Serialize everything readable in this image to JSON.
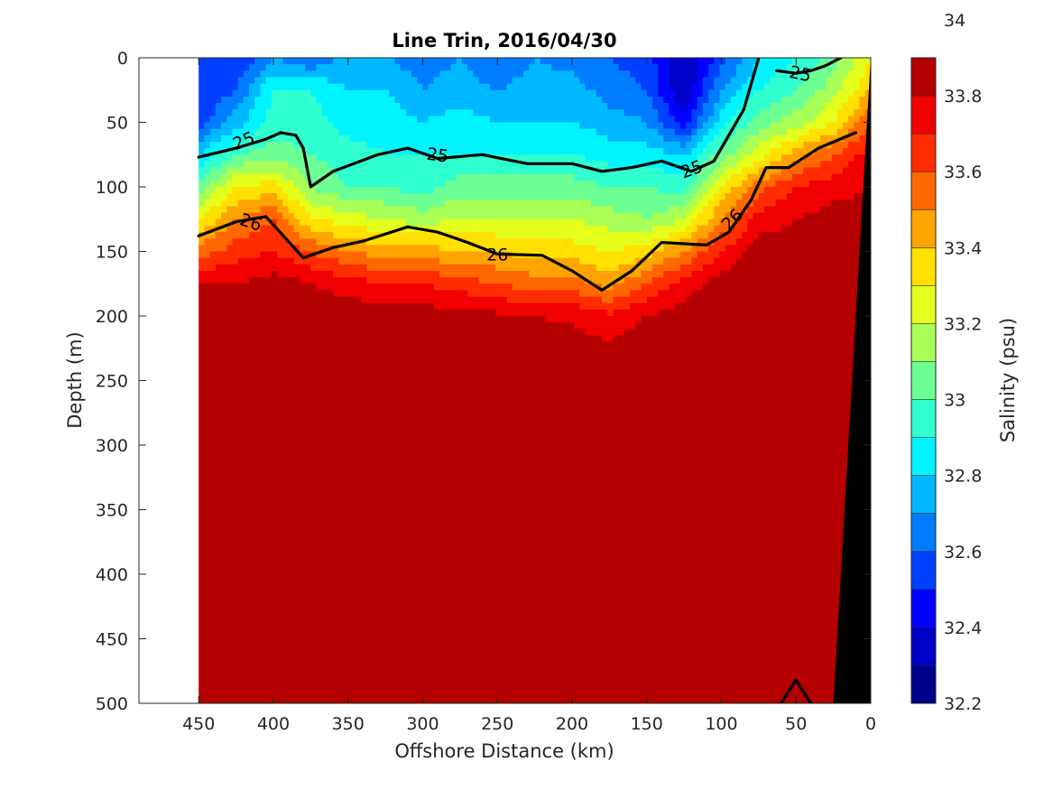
{
  "chart_data": {
    "type": "heatmap",
    "title": "Line Trin, 2016/04/30",
    "xlabel": "Offshore Distance (km)",
    "ylabel": "Depth (m)",
    "xlim": [
      490,
      0
    ],
    "ylim": [
      500,
      0
    ],
    "x_reversed": true,
    "y_reversed": true,
    "xticks": [
      "450",
      "400",
      "350",
      "300",
      "250",
      "200",
      "150",
      "100",
      "50",
      "0"
    ],
    "yticks": [
      "0",
      "50",
      "100",
      "150",
      "200",
      "250",
      "300",
      "350",
      "400",
      "450",
      "500"
    ],
    "colorbar": {
      "label": "Salinity (psu)",
      "min": 32.2,
      "max": 34.1,
      "step": 0.1,
      "ticks": [
        "32.2",
        "32.4",
        "32.6",
        "32.8",
        "33",
        "33.2",
        "33.4",
        "33.6",
        "33.8",
        "34"
      ],
      "colors": [
        "#00008f",
        "#0000c8",
        "#0004ff",
        "#0040ff",
        "#007cff",
        "#00b8ff",
        "#00f4ff",
        "#30ffcf",
        "#6cff93",
        "#a8ff57",
        "#e4ff1b",
        "#ffe000",
        "#ffa400",
        "#ff6800",
        "#ff2c00",
        "#f00000",
        "#b40000"
      ]
    },
    "contour_levels_shown": [
      "25",
      "26"
    ],
    "density_contours": [
      {
        "level": 25,
        "label": "25",
        "x": [
          450,
          425,
          405,
          395,
          385,
          380,
          375,
          360,
          330,
          310,
          290,
          260,
          230,
          200,
          180,
          160,
          140,
          120,
          105,
          95,
          85,
          75
        ],
        "y": [
          77,
          70,
          63,
          58,
          60,
          70,
          100,
          88,
          75,
          70,
          78,
          75,
          82,
          82,
          88,
          85,
          80,
          88,
          80,
          60,
          40,
          0
        ]
      },
      {
        "level": 25,
        "label": "25",
        "x": [
          63,
          50,
          40,
          30,
          20
        ],
        "y": [
          10,
          12,
          10,
          6,
          0
        ]
      },
      {
        "level": 26,
        "label": "26",
        "x": [
          450,
          425,
          405,
          380,
          360,
          340,
          310,
          290,
          270,
          250,
          220,
          200,
          180,
          160,
          140,
          110,
          95,
          80,
          70,
          55,
          35,
          10
        ],
        "y": [
          138,
          127,
          123,
          155,
          147,
          142,
          131,
          135,
          143,
          152,
          153,
          165,
          180,
          165,
          143,
          145,
          135,
          110,
          85,
          85,
          70,
          58
        ]
      },
      {
        "level": 27,
        "label": "",
        "x": [
          60,
          50,
          40
        ],
        "y": [
          500,
          482,
          500
        ]
      }
    ],
    "salinity_field": {
      "x": [
        450,
        425,
        400,
        375,
        350,
        325,
        300,
        275,
        250,
        225,
        200,
        175,
        150,
        125,
        100,
        75,
        50,
        25,
        0
      ],
      "y": [
        0,
        25,
        50,
        75,
        100,
        125,
        150,
        175,
        200,
        250,
        300,
        350,
        400,
        450,
        500
      ],
      "values": [
        [
          32.5,
          32.5,
          32.7,
          32.6,
          32.75,
          32.7,
          32.65,
          32.7,
          32.6,
          32.7,
          32.65,
          32.6,
          32.55,
          32.3,
          32.55,
          32.8,
          32.9,
          33.05,
          33.3
        ],
        [
          32.5,
          32.6,
          32.9,
          32.9,
          32.8,
          32.8,
          32.7,
          32.75,
          32.7,
          32.75,
          32.75,
          32.65,
          32.6,
          32.3,
          32.7,
          32.9,
          33.0,
          33.15,
          33.4
        ],
        [
          32.55,
          32.75,
          32.95,
          32.95,
          32.85,
          32.85,
          32.8,
          32.85,
          32.8,
          32.8,
          32.8,
          32.75,
          32.7,
          32.45,
          32.85,
          33.05,
          33.15,
          33.3,
          33.6
        ],
        [
          32.8,
          33.0,
          33.05,
          33.0,
          32.95,
          32.9,
          32.9,
          32.9,
          32.9,
          32.9,
          32.9,
          32.85,
          32.85,
          32.8,
          33.05,
          33.25,
          33.45,
          33.6,
          33.75
        ],
        [
          33.05,
          33.3,
          33.35,
          33.1,
          33.0,
          33.0,
          32.95,
          33.05,
          33.05,
          33.05,
          33.05,
          33.0,
          33.0,
          32.95,
          33.3,
          33.55,
          33.7,
          33.75,
          33.8
        ],
        [
          33.3,
          33.5,
          33.6,
          33.3,
          33.25,
          33.2,
          33.15,
          33.2,
          33.2,
          33.2,
          33.2,
          33.15,
          33.1,
          33.2,
          33.5,
          33.75,
          33.8,
          33.85,
          33.85
        ],
        [
          33.55,
          33.65,
          33.7,
          33.6,
          33.5,
          33.45,
          33.45,
          33.4,
          33.4,
          33.35,
          33.35,
          33.3,
          33.35,
          33.5,
          33.7,
          33.85,
          33.85,
          33.9,
          33.9
        ],
        [
          33.8,
          33.8,
          33.85,
          33.8,
          33.75,
          33.7,
          33.7,
          33.65,
          33.6,
          33.55,
          33.55,
          33.45,
          33.6,
          33.75,
          33.85,
          33.9,
          33.9,
          33.9,
          33.95
        ],
        [
          33.85,
          33.88,
          33.88,
          33.87,
          33.87,
          33.86,
          33.85,
          33.84,
          33.82,
          33.8,
          33.78,
          33.72,
          33.8,
          33.85,
          33.88,
          33.9,
          33.92,
          33.95,
          33.95
        ],
        [
          33.95,
          33.95,
          33.95,
          33.93,
          33.92,
          33.92,
          33.92,
          33.91,
          33.91,
          33.92,
          33.93,
          33.93,
          33.94,
          33.95,
          33.96,
          33.97,
          33.98,
          34.0,
          34.0
        ],
        [
          34.0,
          34.0,
          33.98,
          33.98,
          33.97,
          33.97,
          33.97,
          33.97,
          33.98,
          33.99,
          34.0,
          34.0,
          34.02,
          34.03,
          34.03,
          34.04,
          34.05,
          34.05,
          34.05
        ],
        [
          34.05,
          34.02,
          34.0,
          34.0,
          34.0,
          34.03,
          34.04,
          34.04,
          34.04,
          34.05,
          34.06,
          34.05,
          34.06,
          34.06,
          34.07,
          34.07,
          34.08,
          34.09,
          34.09
        ],
        [
          34.07,
          34.05,
          34.02,
          34.01,
          34.03,
          34.06,
          34.07,
          34.07,
          34.07,
          34.07,
          34.07,
          34.07,
          34.07,
          34.07,
          34.08,
          34.09,
          34.11,
          34.12,
          34.12
        ],
        [
          34.08,
          34.08,
          34.06,
          34.02,
          34.04,
          34.07,
          34.08,
          34.08,
          34.08,
          34.08,
          34.08,
          34.08,
          34.08,
          34.09,
          34.1,
          34.12,
          34.14,
          34.14,
          34.14
        ],
        [
          34.09,
          34.09,
          34.09,
          34.07,
          34.07,
          34.08,
          34.09,
          34.09,
          34.09,
          34.09,
          34.09,
          34.09,
          34.09,
          34.1,
          34.11,
          34.13,
          34.15,
          34.15,
          34.15
        ]
      ]
    },
    "bottom_topography": {
      "x": [
        0,
        0,
        25
      ],
      "y": [
        0,
        500,
        500
      ]
    }
  }
}
